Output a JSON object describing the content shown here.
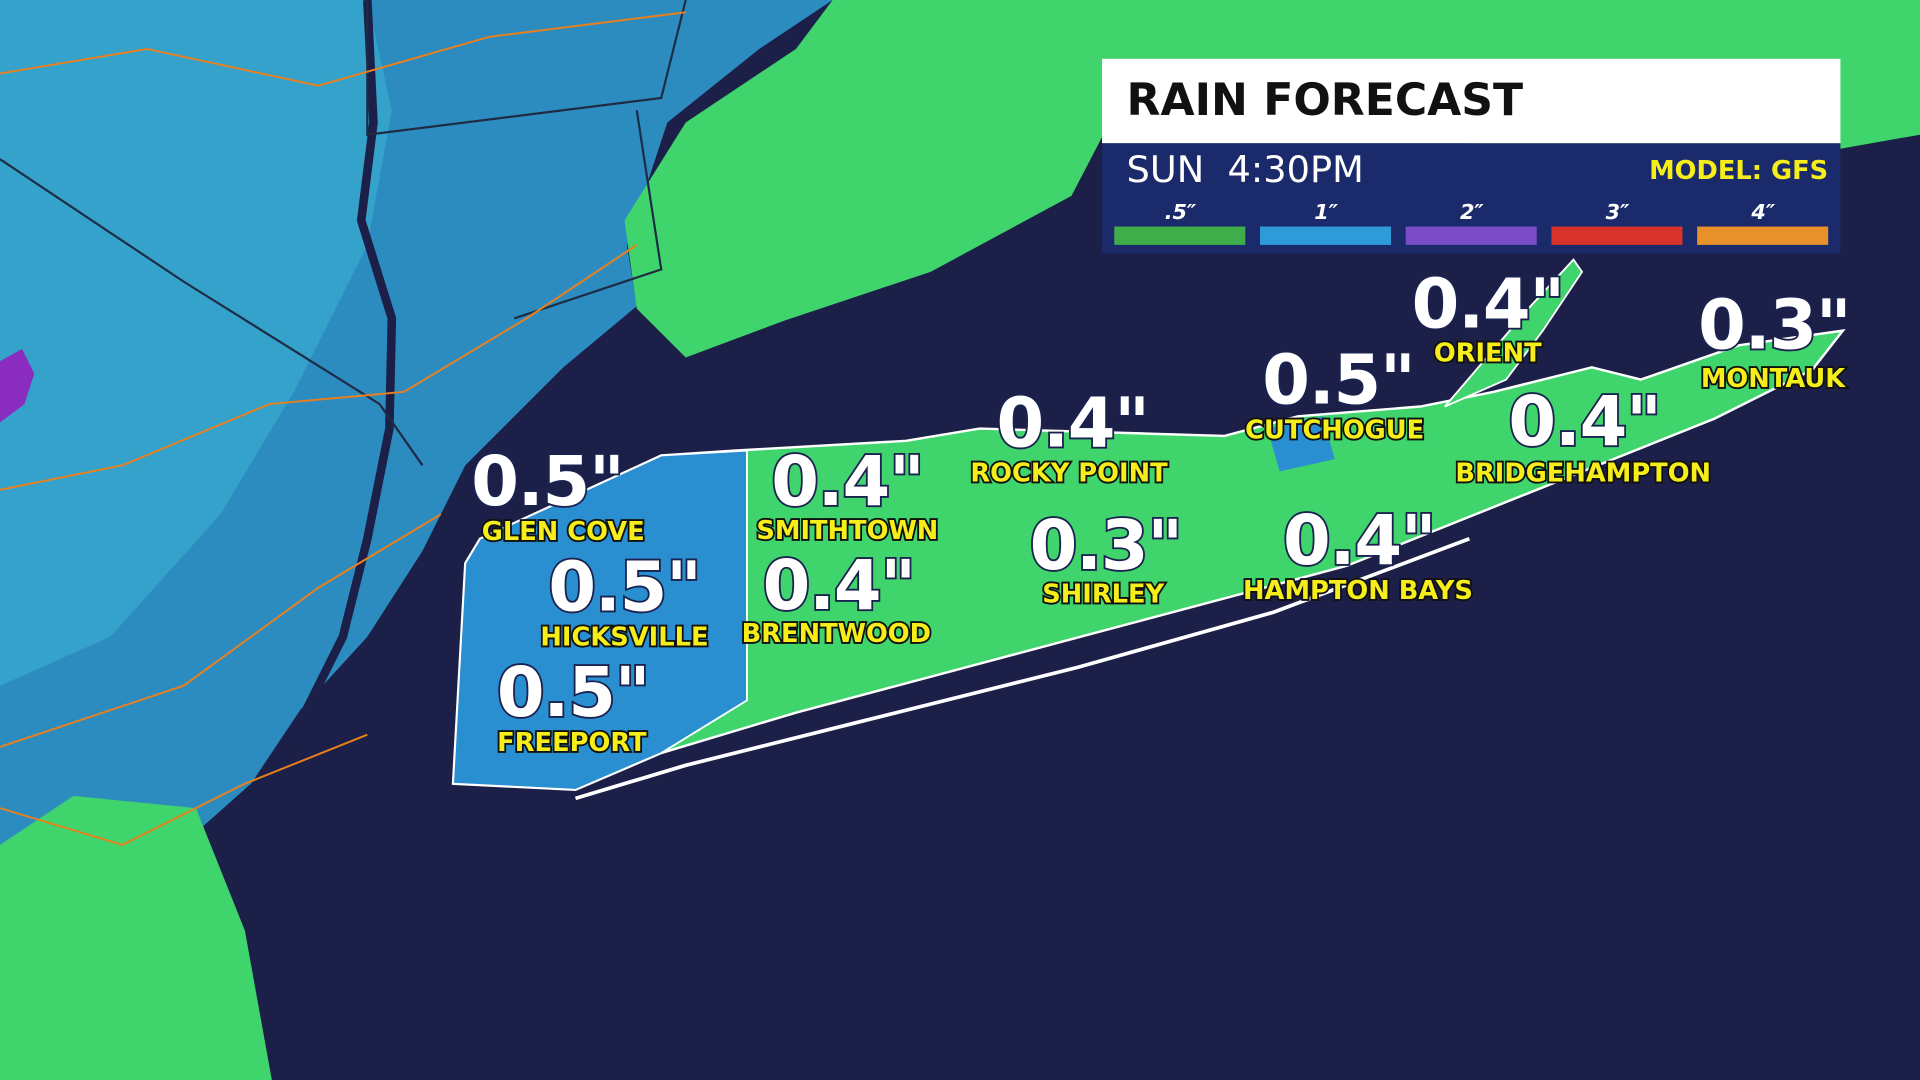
{
  "header": {
    "title": "RAIN FORECAST",
    "time": "SUN  4:30PM",
    "model": "MODEL: GFS"
  },
  "legend": [
    ".5″",
    "1″",
    "2″",
    "3″",
    "4″"
  ],
  "locations": [
    {
      "value": "0.5\"",
      "name": "GLEN COVE"
    },
    {
      "value": "0.5\"",
      "name": "HICKSVILLE"
    },
    {
      "value": "0.5\"",
      "name": "FREEPORT"
    },
    {
      "value": "0.4\"",
      "name": "SMITHTOWN"
    },
    {
      "value": "0.4\"",
      "name": "BRENTWOOD"
    },
    {
      "value": "0.4\"",
      "name": "ROCKY POINT"
    },
    {
      "value": "0.3\"",
      "name": "SHIRLEY"
    },
    {
      "value": "0.5\"",
      "name": "CUTCHOGUE"
    },
    {
      "value": "0.4\"",
      "name": "ORIENT"
    },
    {
      "value": "0.4\"",
      "name": "HAMPTON BAYS"
    },
    {
      "value": "0.4\"",
      "name": "BRIDGEHAMPTON"
    },
    {
      "value": "0.3\"",
      "name": "MONTAUK"
    }
  ]
}
